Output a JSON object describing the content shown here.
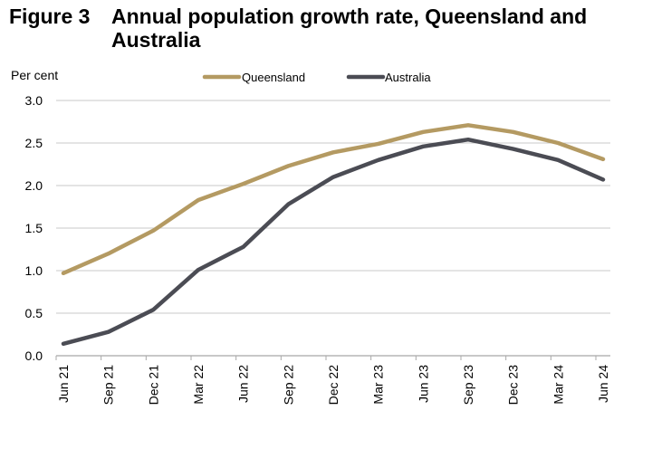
{
  "figure": {
    "label": "Figure 3",
    "title": "Annual population growth rate, Queensland and Australia"
  },
  "chart_data": {
    "type": "line",
    "title": "Annual population growth rate, Queensland and Australia",
    "xlabel": "",
    "ylabel": "Per cent",
    "ylim": [
      0,
      3.0
    ],
    "yticks": [
      "0.0",
      "0.5",
      "1.0",
      "1.5",
      "2.0",
      "2.5",
      "3.0"
    ],
    "grid": true,
    "legend_position": "top-center",
    "categories": [
      "Jun 21",
      "Sep 21",
      "Dec 21",
      "Mar 22",
      "Jun 22",
      "Sep 22",
      "Dec 22",
      "Mar 23",
      "Jun 23",
      "Sep 23",
      "Dec 23",
      "Mar 24",
      "Jun 24"
    ],
    "series": [
      {
        "name": "Queensland",
        "color": "#b49a62",
        "values": [
          0.97,
          1.2,
          1.47,
          1.83,
          2.02,
          2.23,
          2.39,
          2.49,
          2.63,
          2.71,
          2.63,
          2.5,
          2.31
        ]
      },
      {
        "name": "Australia",
        "color": "#4b4c54",
        "values": [
          0.14,
          0.28,
          0.54,
          1.01,
          1.28,
          1.78,
          2.1,
          2.3,
          2.46,
          2.54,
          2.43,
          2.3,
          2.07
        ]
      }
    ]
  }
}
